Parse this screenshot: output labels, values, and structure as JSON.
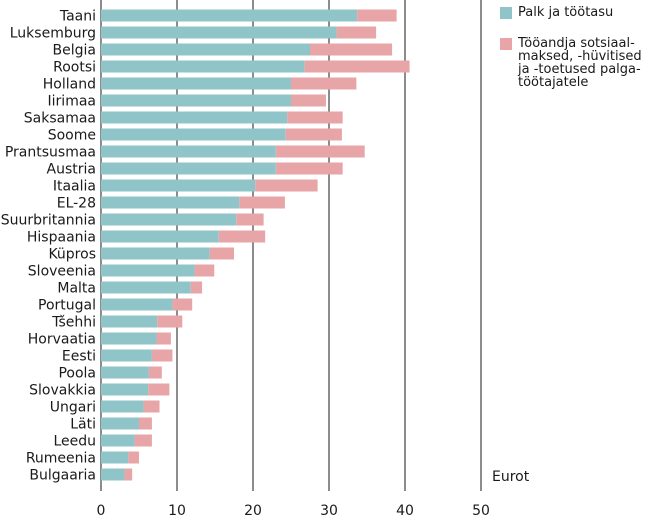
{
  "colors": {
    "series1": "#8fc5c8",
    "series2": "#e8a5a8",
    "grid": "#1a1a1a"
  },
  "legend": {
    "item1": "Palk ja töötasu",
    "item2": "Tööandja sotsiaal-maksed, -hüvitised ja -toetused palga-töötajatele"
  },
  "chart_data": {
    "type": "bar",
    "orientation": "horizontal",
    "stacked": true,
    "xlabel": "Eurot",
    "xlim": [
      0,
      50
    ],
    "xticks": [
      0,
      10,
      20,
      30,
      40,
      50
    ],
    "grid": true,
    "legend_position": "top-right",
    "categories": [
      "Taani",
      "Luksemburg",
      "Belgia",
      "Rootsi",
      "Holland",
      "Iirimaa",
      "Saksamaa",
      "Soome",
      "Prantsusmaa",
      "Austria",
      "Itaalia",
      "EL-28",
      "Suurbritannia",
      "Hispaania",
      "Küpros",
      "Sloveenia",
      "Malta",
      "Portugal",
      "Tšehhi",
      "Horvaatia",
      "Eesti",
      "Poola",
      "Slovakkia",
      "Ungari",
      "Läti",
      "Leedu",
      "Rumeenia",
      "Bulgaaria"
    ],
    "series": [
      {
        "name": "Palk ja töötasu",
        "values": [
          33.7,
          31.0,
          27.5,
          26.8,
          25.0,
          25.0,
          24.5,
          24.3,
          23.0,
          23.0,
          20.3,
          18.2,
          17.8,
          15.5,
          14.3,
          12.3,
          11.8,
          9.4,
          7.4,
          7.3,
          6.7,
          6.3,
          6.2,
          5.6,
          5.0,
          4.4,
          3.6,
          3.1
        ]
      },
      {
        "name": "Tööandja sotsiaalmaksed, -hüvitised ja -toetused palgatöötajatele",
        "values": [
          5.2,
          5.2,
          10.8,
          13.8,
          8.6,
          4.6,
          7.3,
          7.4,
          11.7,
          8.8,
          8.2,
          6.0,
          3.6,
          6.1,
          3.2,
          2.6,
          1.5,
          2.6,
          3.3,
          1.9,
          2.7,
          1.7,
          2.8,
          2.1,
          1.7,
          2.3,
          1.4,
          1.0
        ]
      }
    ]
  }
}
